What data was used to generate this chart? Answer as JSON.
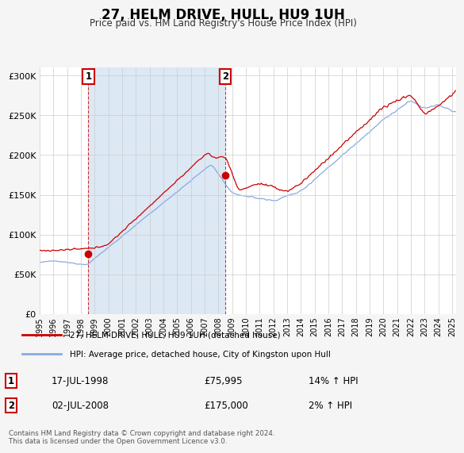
{
  "title": "27, HELM DRIVE, HULL, HU9 1UH",
  "subtitle": "Price paid vs. HM Land Registry's House Price Index (HPI)",
  "sale1_date": "17-JUL-1998",
  "sale1_price": 75995,
  "sale1_hpi": "14% ↑ HPI",
  "sale2_date": "02-JUL-2008",
  "sale2_price": 175000,
  "sale2_hpi": "2% ↑ HPI",
  "legend_line1": "27, HELM DRIVE, HULL, HU9 1UH (detached house)",
  "legend_line2": "HPI: Average price, detached house, City of Kingston upon Hull",
  "footer": "Contains HM Land Registry data © Crown copyright and database right 2024.\nThis data is licensed under the Open Government Licence v3.0.",
  "price_color": "#cc0000",
  "hpi_color": "#88aadd",
  "shade_color": "#dde8f5",
  "background_color": "#f5f5f5",
  "plot_bg_color": "#ffffff",
  "grid_color": "#cccccc",
  "ylim": [
    0,
    310000
  ],
  "yticks": [
    0,
    50000,
    100000,
    150000,
    200000,
    250000,
    300000
  ],
  "sale1_year": 1998.54,
  "sale2_year": 2008.5,
  "xmin": 1995,
  "xmax": 2025.3
}
